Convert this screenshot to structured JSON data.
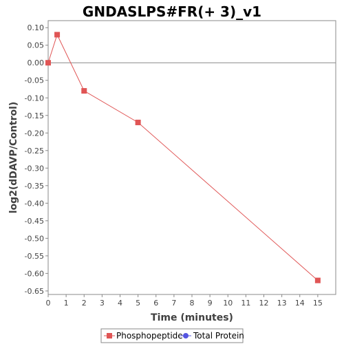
{
  "chart_data": {
    "type": "line",
    "title": "GNDASLPS#FR(+ 3)_v1",
    "xlabel": "Time (minutes)",
    "ylabel": "log2(dDAVP/Control)",
    "xlim": [
      0,
      16
    ],
    "ylim": [
      -0.66,
      0.12
    ],
    "x_ticks": [
      0,
      1,
      2,
      3,
      4,
      5,
      6,
      7,
      8,
      9,
      10,
      11,
      12,
      13,
      14,
      15
    ],
    "y_ticks": [
      0.1,
      0.05,
      0.0,
      -0.05,
      -0.1,
      -0.15,
      -0.2,
      -0.25,
      -0.3,
      -0.35,
      -0.4,
      -0.45,
      -0.5,
      -0.55,
      -0.6,
      -0.65
    ],
    "y_tick_labels": [
      "0.10",
      "0.05",
      "0.00",
      "-0.05",
      "-0.10",
      "-0.15",
      "-0.20",
      "-0.25",
      "-0.30",
      "-0.35",
      "-0.40",
      "-0.45",
      "-0.50",
      "-0.55",
      "-0.60",
      "-0.65"
    ],
    "reference_line_y": 0,
    "grid": false,
    "legend_position": "bottom",
    "series": [
      {
        "name": "Phosphopeptide",
        "color": "#e05555",
        "marker": "square",
        "x": [
          0,
          0.5,
          2,
          5,
          15
        ],
        "values": [
          0.0,
          0.08,
          -0.08,
          -0.17,
          -0.62
        ]
      },
      {
        "name": "Total Protein",
        "color": "#5555e0",
        "marker": "circle",
        "x": [],
        "values": []
      }
    ]
  }
}
